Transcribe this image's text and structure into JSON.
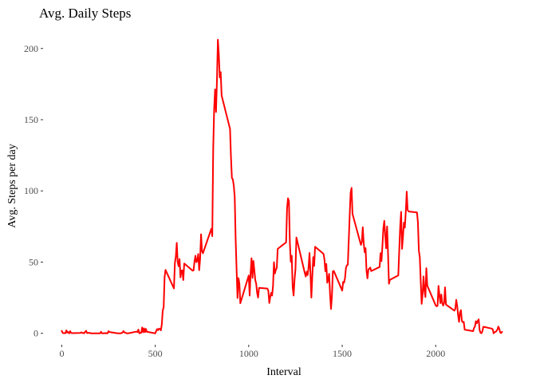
{
  "chart_data": {
    "type": "line",
    "title": "Avg. Daily Steps",
    "xlabel": "Interval",
    "ylabel": "Avg. Steps per day",
    "xlim": [
      -100,
      2400
    ],
    "ylim": [
      -8,
      215
    ],
    "x_ticks": [
      0,
      500,
      1000,
      1500,
      2000
    ],
    "y_ticks": [
      0,
      50,
      100,
      150,
      200
    ],
    "grid": false,
    "legend": "none",
    "line_color": "#ff0000",
    "series": [
      {
        "values": [
          [
            0,
            1.7
          ],
          [
            5,
            0.3
          ],
          [
            10,
            0.1
          ],
          [
            15,
            0.2
          ],
          [
            20,
            0.1
          ],
          [
            25,
            2.1
          ],
          [
            30,
            0.5
          ],
          [
            35,
            0.9
          ],
          [
            40,
            0
          ],
          [
            45,
            1.5
          ],
          [
            50,
            0.3
          ],
          [
            55,
            0.1
          ],
          [
            100,
            0.3
          ],
          [
            105,
            0.7
          ],
          [
            110,
            0.2
          ],
          [
            115,
            0.3
          ],
          [
            120,
            0
          ],
          [
            125,
            1.1
          ],
          [
            130,
            1.8
          ],
          [
            135,
            0.2
          ],
          [
            140,
            0.2
          ],
          [
            145,
            0.4
          ],
          [
            150,
            0.3
          ],
          [
            155,
            0
          ],
          [
            200,
            0
          ],
          [
            205,
            0
          ],
          [
            210,
            1.1
          ],
          [
            215,
            0
          ],
          [
            220,
            0
          ],
          [
            225,
            0.1
          ],
          [
            230,
            0
          ],
          [
            235,
            0.2
          ],
          [
            240,
            0
          ],
          [
            245,
            0
          ],
          [
            250,
            1.5
          ],
          [
            255,
            0.9
          ],
          [
            300,
            0
          ],
          [
            305,
            0
          ],
          [
            310,
            0
          ],
          [
            315,
            0
          ],
          [
            320,
            0.2
          ],
          [
            325,
            0.6
          ],
          [
            330,
            1.6
          ],
          [
            335,
            0.6
          ],
          [
            340,
            0.5
          ],
          [
            345,
            0.1
          ],
          [
            350,
            0
          ],
          [
            355,
            0
          ],
          [
            400,
            1.2
          ],
          [
            405,
            0.9
          ],
          [
            410,
            2.6
          ],
          [
            415,
            0
          ],
          [
            420,
            0.3
          ],
          [
            425,
            0.4
          ],
          [
            430,
            4.1
          ],
          [
            435,
            0.7
          ],
          [
            440,
            3.5
          ],
          [
            445,
            0.8
          ],
          [
            450,
            3.1
          ],
          [
            455,
            1.1
          ],
          [
            500,
            0
          ],
          [
            505,
            1.6
          ],
          [
            510,
            3.0
          ],
          [
            515,
            2.2
          ],
          [
            520,
            3.3
          ],
          [
            525,
            3.0
          ],
          [
            530,
            2.1
          ],
          [
            535,
            6.1
          ],
          [
            540,
            16.0
          ],
          [
            545,
            18.3
          ],
          [
            550,
            39.5
          ],
          [
            555,
            44.5
          ],
          [
            600,
            31.5
          ],
          [
            605,
            49.3
          ],
          [
            610,
            53.8
          ],
          [
            615,
            63.5
          ],
          [
            620,
            50.0
          ],
          [
            625,
            47.1
          ],
          [
            630,
            52.2
          ],
          [
            635,
            39.3
          ],
          [
            640,
            44.0
          ],
          [
            645,
            44.2
          ],
          [
            650,
            37.4
          ],
          [
            655,
            49.0
          ],
          [
            700,
            44.0
          ],
          [
            705,
            44.2
          ],
          [
            710,
            50.5
          ],
          [
            715,
            54.5
          ],
          [
            720,
            49.9
          ],
          [
            725,
            51.0
          ],
          [
            730,
            55.7
          ],
          [
            735,
            44.3
          ],
          [
            740,
            52.3
          ],
          [
            745,
            69.5
          ],
          [
            750,
            57.8
          ],
          [
            755,
            56.2
          ],
          [
            800,
            73.4
          ],
          [
            805,
            68.2
          ],
          [
            810,
            129.4
          ],
          [
            815,
            157.5
          ],
          [
            820,
            171.2
          ],
          [
            825,
            155.4
          ],
          [
            830,
            177.3
          ],
          [
            835,
            206.2
          ],
          [
            840,
            195.9
          ],
          [
            845,
            179.6
          ],
          [
            850,
            183.4
          ],
          [
            855,
            167.0
          ],
          [
            900,
            143.5
          ],
          [
            905,
            124.0
          ],
          [
            910,
            109.1
          ],
          [
            915,
            108.1
          ],
          [
            920,
            103.7
          ],
          [
            925,
            95.9
          ],
          [
            930,
            66.2
          ],
          [
            935,
            45.2
          ],
          [
            940,
            24.8
          ],
          [
            945,
            38.8
          ],
          [
            950,
            35.0
          ],
          [
            955,
            21.1
          ],
          [
            1000,
            40.6
          ],
          [
            1005,
            26.5
          ],
          [
            1010,
            42.4
          ],
          [
            1015,
            52.7
          ],
          [
            1020,
            38.9
          ],
          [
            1025,
            50.8
          ],
          [
            1030,
            44.3
          ],
          [
            1035,
            37.4
          ],
          [
            1040,
            34.7
          ],
          [
            1045,
            28.3
          ],
          [
            1050,
            25.1
          ],
          [
            1055,
            31.9
          ],
          [
            1100,
            31.4
          ],
          [
            1105,
            29.7
          ],
          [
            1110,
            21.3
          ],
          [
            1115,
            25.5
          ],
          [
            1120,
            28.4
          ],
          [
            1125,
            26.5
          ],
          [
            1130,
            33.4
          ],
          [
            1135,
            49.9
          ],
          [
            1140,
            42.0
          ],
          [
            1145,
            44.6
          ],
          [
            1150,
            46.0
          ],
          [
            1155,
            59.3
          ],
          [
            1200,
            63.9
          ],
          [
            1205,
            87.7
          ],
          [
            1210,
            94.8
          ],
          [
            1215,
            92.8
          ],
          [
            1220,
            63.4
          ],
          [
            1225,
            50.2
          ],
          [
            1230,
            54.5
          ],
          [
            1235,
            32.4
          ],
          [
            1240,
            26.5
          ],
          [
            1245,
            37.7
          ],
          [
            1250,
            45.1
          ],
          [
            1255,
            67.3
          ],
          [
            1300,
            42.3
          ],
          [
            1305,
            39.9
          ],
          [
            1310,
            43.3
          ],
          [
            1315,
            40.9
          ],
          [
            1320,
            46.2
          ],
          [
            1325,
            56.4
          ],
          [
            1330,
            42.8
          ],
          [
            1335,
            25.1
          ],
          [
            1340,
            39.9
          ],
          [
            1345,
            53.5
          ],
          [
            1350,
            47.3
          ],
          [
            1355,
            60.8
          ],
          [
            1400,
            55.8
          ],
          [
            1405,
            51.9
          ],
          [
            1410,
            43.6
          ],
          [
            1415,
            48.7
          ],
          [
            1420,
            35.5
          ],
          [
            1425,
            37.5
          ],
          [
            1430,
            41.8
          ],
          [
            1435,
            27.5
          ],
          [
            1440,
            17.1
          ],
          [
            1445,
            26.1
          ],
          [
            1450,
            43.6
          ],
          [
            1455,
            43.8
          ],
          [
            1500,
            30.0
          ],
          [
            1505,
            36.1
          ],
          [
            1510,
            35.5
          ],
          [
            1515,
            38.8
          ],
          [
            1520,
            45.9
          ],
          [
            1525,
            47.8
          ],
          [
            1530,
            48.1
          ],
          [
            1535,
            65.3
          ],
          [
            1540,
            82.9
          ],
          [
            1545,
            98.7
          ],
          [
            1550,
            102.1
          ],
          [
            1555,
            83.9
          ],
          [
            1600,
            62.1
          ],
          [
            1605,
            64.1
          ],
          [
            1610,
            74.5
          ],
          [
            1615,
            63.2
          ],
          [
            1620,
            56.9
          ],
          [
            1625,
            59.8
          ],
          [
            1630,
            43.9
          ],
          [
            1635,
            38.6
          ],
          [
            1640,
            44.7
          ],
          [
            1645,
            45.5
          ],
          [
            1650,
            46.2
          ],
          [
            1655,
            43.7
          ],
          [
            1700,
            46.6
          ],
          [
            1705,
            56.3
          ],
          [
            1710,
            50.7
          ],
          [
            1715,
            61.2
          ],
          [
            1720,
            73.4
          ],
          [
            1725,
            79.0
          ],
          [
            1730,
            68.9
          ],
          [
            1735,
            59.7
          ],
          [
            1740,
            75.1
          ],
          [
            1745,
            56.5
          ],
          [
            1750,
            34.8
          ],
          [
            1755,
            37.5
          ],
          [
            1800,
            40.7
          ],
          [
            1805,
            58.0
          ],
          [
            1810,
            74.7
          ],
          [
            1815,
            85.3
          ],
          [
            1820,
            59.3
          ],
          [
            1825,
            67.8
          ],
          [
            1830,
            77.7
          ],
          [
            1835,
            74.2
          ],
          [
            1840,
            85.3
          ],
          [
            1845,
            99.5
          ],
          [
            1850,
            86.6
          ],
          [
            1855,
            85.6
          ],
          [
            1900,
            84.9
          ],
          [
            1905,
            77.8
          ],
          [
            1910,
            58.0
          ],
          [
            1915,
            53.4
          ],
          [
            1920,
            36.3
          ],
          [
            1925,
            20.7
          ],
          [
            1930,
            27.4
          ],
          [
            1935,
            40.0
          ],
          [
            1940,
            30.2
          ],
          [
            1945,
            25.5
          ],
          [
            1950,
            45.7
          ],
          [
            1955,
            33.5
          ],
          [
            2000,
            19.6
          ],
          [
            2005,
            19.0
          ],
          [
            2010,
            19.3
          ],
          [
            2015,
            33.3
          ],
          [
            2020,
            26.8
          ],
          [
            2025,
            21.2
          ],
          [
            2030,
            27.3
          ],
          [
            2035,
            21.3
          ],
          [
            2040,
            19.5
          ],
          [
            2045,
            21.3
          ],
          [
            2050,
            32.3
          ],
          [
            2055,
            20.2
          ],
          [
            2100,
            15.9
          ],
          [
            2105,
            17.2
          ],
          [
            2110,
            23.5
          ],
          [
            2115,
            19.2
          ],
          [
            2120,
            12.5
          ],
          [
            2125,
            8.0
          ],
          [
            2130,
            14.7
          ],
          [
            2135,
            16.3
          ],
          [
            2140,
            8.7
          ],
          [
            2145,
            7.8
          ],
          [
            2150,
            8.1
          ],
          [
            2155,
            2.6
          ],
          [
            2200,
            1.5
          ],
          [
            2205,
            3.7
          ],
          [
            2210,
            4.8
          ],
          [
            2215,
            8.5
          ],
          [
            2220,
            7.1
          ],
          [
            2225,
            8.7
          ],
          [
            2230,
            9.8
          ],
          [
            2235,
            2.2
          ],
          [
            2240,
            0.3
          ],
          [
            2245,
            0.1
          ],
          [
            2250,
            1.6
          ],
          [
            2255,
            4.6
          ],
          [
            2300,
            3.3
          ],
          [
            2305,
            2.8
          ],
          [
            2310,
            0
          ],
          [
            2315,
            0.8
          ],
          [
            2320,
            1.0
          ],
          [
            2325,
            1.6
          ],
          [
            2330,
            2.6
          ],
          [
            2335,
            4.7
          ],
          [
            2340,
            3.3
          ],
          [
            2345,
            0.6
          ],
          [
            2350,
            0.2
          ],
          [
            2355,
            1.1
          ]
        ]
      }
    ]
  }
}
